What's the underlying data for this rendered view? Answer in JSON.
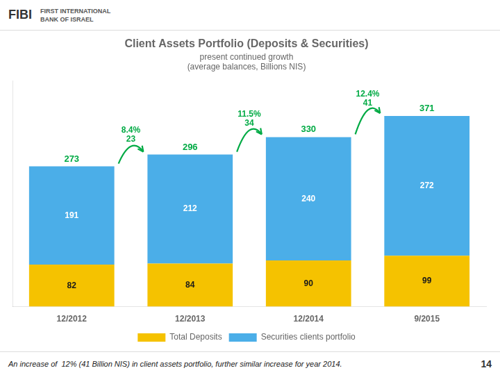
{
  "chart_data": {
    "type": "bar",
    "stacked": true,
    "title": "Client Assets Portfolio (Deposits & Securities)",
    "subtitle": [
      "present continued growth",
      "(average balances, Billions NIS)"
    ],
    "categories": [
      "12/2012",
      "12/2013",
      "12/2014",
      "9/2015"
    ],
    "series": [
      {
        "name": "Total Deposits",
        "color": "#F5C200",
        "values": [
          82,
          84,
          90,
          99
        ]
      },
      {
        "name": "Securities clients portfolio",
        "color": "#4BAEE8",
        "values": [
          191,
          212,
          240,
          272
        ]
      }
    ],
    "totals": {
      "values": [
        273,
        296,
        330,
        371
      ],
      "color": "#00AA44"
    },
    "growth": {
      "color": "#00AA44",
      "items": [
        {
          "from": "12/2012",
          "to": "12/2013",
          "value": 23,
          "percent_label": "8.4%"
        },
        {
          "from": "12/2013",
          "to": "12/2014",
          "value": 34,
          "percent_label": "11.5%"
        },
        {
          "from": "12/2014",
          "to": "9/2015",
          "value": 41,
          "percent_label": "12.4%"
        }
      ]
    },
    "ylim": [
      0,
      440
    ],
    "tick_labels": "x",
    "grid": false,
    "legend": "bottom",
    "data_labels": true,
    "header": {
      "brand": "FIBI",
      "lines": [
        "FIRST INTERNATIONAL",
        "BANK OF ISRAEL"
      ]
    },
    "footer": "An increase of  12% (41 Billion NIS) in client assets portfolio, further similar increase for year 2014.",
    "page_number": "14"
  }
}
